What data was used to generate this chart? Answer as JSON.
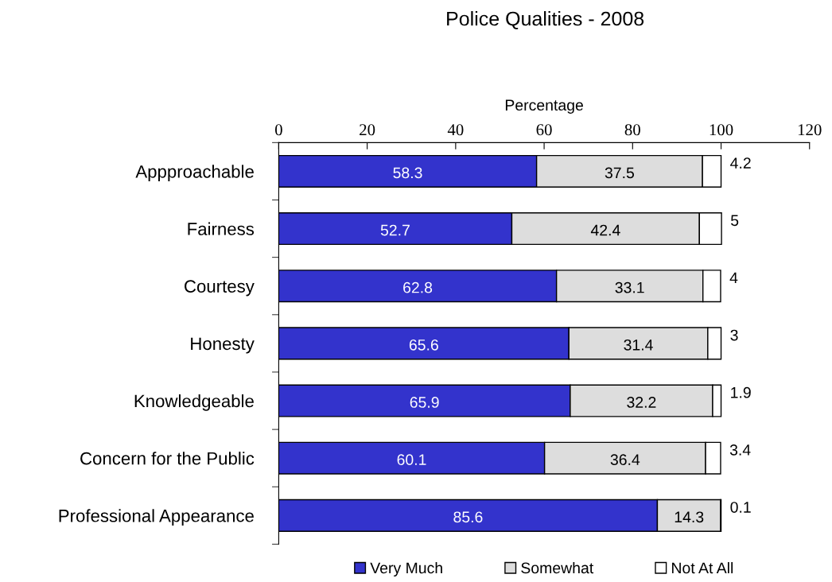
{
  "chart_data": {
    "type": "bar",
    "orientation": "horizontal",
    "stacked": true,
    "title": "Police Qualities - 2008",
    "xlabel": "Percentage",
    "categories": [
      "Appproachable",
      "Fairness",
      "Courtesy",
      "Honesty",
      "Knowledgeable",
      "Concern for the Public",
      "Professional Appearance"
    ],
    "series": [
      {
        "name": "Very Much",
        "color": "#3333cc",
        "values": [
          58.3,
          52.7,
          62.8,
          65.6,
          65.9,
          60.1,
          85.6
        ]
      },
      {
        "name": "Somewhat",
        "color": "#dddddd",
        "values": [
          37.5,
          42.4,
          33.1,
          31.4,
          32.2,
          36.4,
          14.3
        ]
      },
      {
        "name": "Not At All",
        "color": "#ffffff",
        "values": [
          4.2,
          5,
          4,
          3,
          1.9,
          3.4,
          0.1
        ]
      }
    ],
    "xlim": [
      0,
      120
    ],
    "xticks": [
      0,
      20,
      40,
      60,
      80,
      100,
      120
    ],
    "data_labels": true,
    "legend": "bottom",
    "grid": false
  }
}
